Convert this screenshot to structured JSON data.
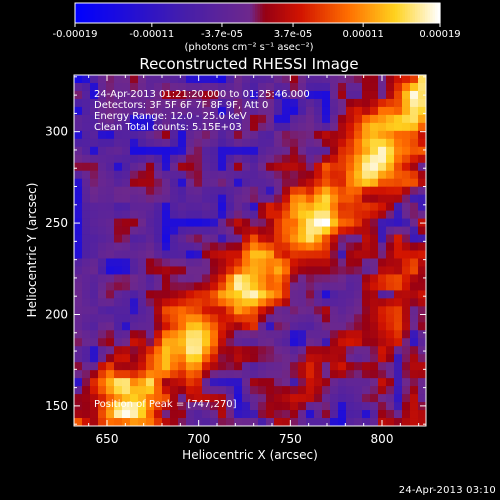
{
  "chart_data": {
    "type": "heatmap",
    "title": "Reconstructed RHESSI Image",
    "xlabel": "Heliocentric X (arcsec)",
    "ylabel": "Heliocentric Y (arcsec)",
    "xlim": [
      632,
      824
    ],
    "ylim": [
      139,
      331
    ],
    "x_ticks": [
      650,
      700,
      750,
      800
    ],
    "y_ticks": [
      150,
      200,
      250,
      300
    ],
    "annotation_lines": [
      "24-Apr-2013 01:21:20.000 to 01:25:46.000",
      "Detectors: 3F 5F 6F 7F 8F 9F, Att 0",
      "Energy Range: 12.0 - 25.0 keV",
      "Clean    Total counts: 5.15E+03"
    ],
    "peak_label": "Position of Peak = [747,270]",
    "peak_position": [
      747,
      270
    ],
    "colorbar": {
      "ticks": [
        "-0.00019",
        "-0.00011",
        "-3.7e-05",
        "3.7e-05",
        "0.00011",
        "0.00019"
      ],
      "tick_values": [
        -0.00019,
        -0.00011,
        -3.7e-05,
        3.7e-05,
        0.00011,
        0.00019
      ],
      "unit_label": "(photons cm⁻² s⁻¹ asec⁻²)",
      "range": [
        -0.00019,
        0.00019
      ]
    },
    "grid": false
  },
  "timestamp": "24-Apr-2013 03:10"
}
